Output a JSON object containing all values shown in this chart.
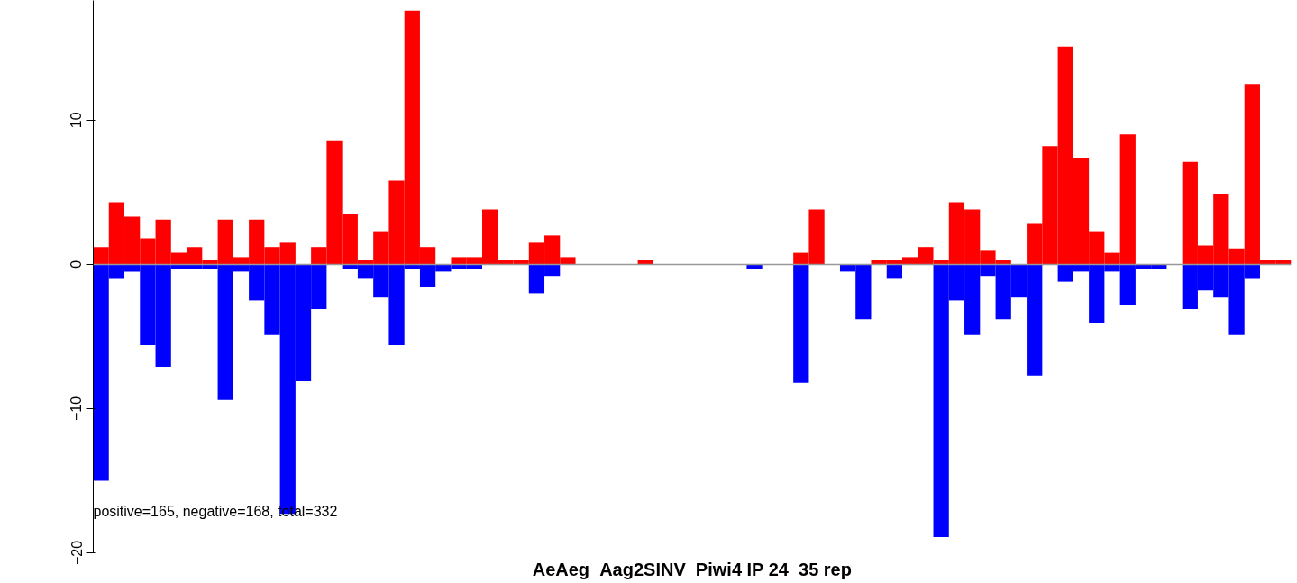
{
  "chart_data": {
    "type": "bar",
    "title": "AeAeg_Aag2SINV_Piwi4 IP 24_35 rep",
    "categories": [
      null,
      null,
      null,
      null,
      null,
      null,
      null,
      null,
      null,
      null,
      null,
      null,
      null,
      null,
      null,
      null,
      null,
      null,
      null,
      null,
      null,
      null,
      null,
      null,
      null,
      null,
      null,
      null,
      null,
      null,
      null,
      null,
      null,
      null,
      null,
      null,
      null,
      null,
      null,
      null,
      null,
      null,
      null,
      null,
      null,
      null,
      null,
      null,
      null,
      null,
      null,
      null,
      null,
      null,
      null,
      null,
      null,
      null,
      null,
      null,
      null,
      null,
      null,
      null,
      null,
      null,
      null,
      null,
      null,
      null,
      null,
      null,
      null,
      null,
      null,
      null,
      null
    ],
    "series": [
      {
        "color": "#ff0000",
        "values": [
          1.2,
          4.3,
          3.3,
          1.8,
          3.1,
          0.8,
          1.2,
          0.3,
          3.1,
          0.5,
          3.1,
          1.2,
          1.5,
          0,
          1.2,
          8.6,
          3.5,
          0.3,
          2.3,
          5.8,
          17.6,
          1.2,
          0,
          0.5,
          0.5,
          3.8,
          0.3,
          0.3,
          1.5,
          2.0,
          0.5,
          0,
          0,
          0,
          0,
          0.3,
          0,
          0,
          0,
          0,
          0,
          0,
          0,
          0,
          0,
          0.8,
          3.8,
          0,
          0,
          0,
          0.3,
          0.3,
          0.5,
          1.2,
          0.3,
          4.3,
          3.8,
          1.0,
          0.3,
          0,
          2.8,
          8.2,
          15.1,
          7.4,
          2.3,
          0.8,
          9.0,
          0,
          0,
          0,
          7.1,
          1.3,
          4.9,
          1.1,
          12.5,
          0.3,
          0.3
        ]
      },
      {
        "color": "#0000ff",
        "values": [
          -15.0,
          -1.0,
          -0.5,
          -5.6,
          -7.1,
          -0.3,
          -0.3,
          -0.3,
          -9.4,
          -0.5,
          -2.5,
          -4.9,
          -17.3,
          -8.1,
          -3.1,
          0,
          -0.3,
          -1.0,
          -2.3,
          -5.6,
          -0.3,
          -1.6,
          -0.5,
          -0.3,
          -0.3,
          0,
          0,
          0,
          -2.0,
          -0.8,
          0,
          0,
          0,
          0,
          0,
          0,
          0,
          0,
          0,
          0,
          0,
          0,
          -0.3,
          0,
          0,
          -8.2,
          0,
          0,
          -0.5,
          -3.8,
          0,
          -1.0,
          0,
          0,
          -18.9,
          -2.5,
          -4.9,
          -0.8,
          -3.8,
          -2.3,
          -7.7,
          0,
          -1.2,
          -0.5,
          -4.1,
          -0.5,
          -2.8,
          -0.3,
          -0.3,
          0,
          -3.1,
          -1.8,
          -2.3,
          -4.9,
          -1.0,
          0,
          0
        ]
      }
    ],
    "ylim": [
      -20,
      18.3
    ],
    "yticks": [
      -20,
      -10,
      0,
      10
    ],
    "ref_lines": [
      {
        "axis": "y",
        "value": 0,
        "color": "#999999"
      }
    ],
    "annotations": [
      "positive=165, negative=168, total=332"
    ],
    "tick_labels": "y",
    "grid": false,
    "stacked": true
  }
}
